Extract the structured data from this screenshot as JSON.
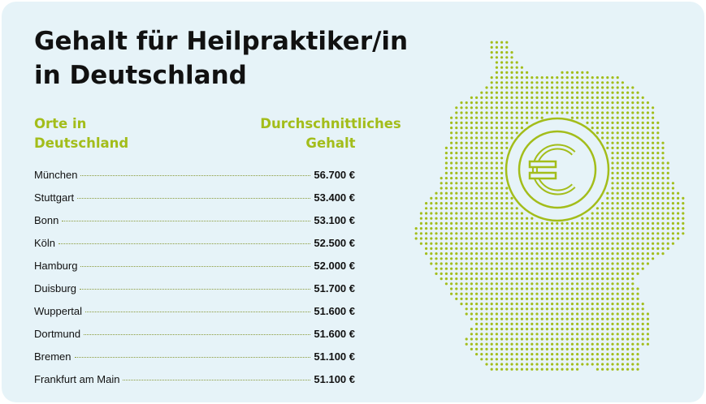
{
  "title_line1": "Gehalt für Heilpraktiker/in",
  "title_line2": "in Deutschland",
  "col_left_line1": "Orte in",
  "col_left_line2": "Deutschland",
  "col_right_line1": "Durchschnittliches",
  "col_right_line2": "Gehalt",
  "colors": {
    "accent": "#a3bd1a",
    "background": "#e6f3f8",
    "text": "#111111"
  },
  "icons": [
    "germany-map-dots",
    "euro-icon"
  ],
  "chart_data": {
    "type": "table",
    "columns": [
      "Orte in Deutschland",
      "Durchschnittliches Gehalt"
    ],
    "rows": [
      {
        "city": "München",
        "salary": "56.700 €",
        "value": 56700
      },
      {
        "city": "Stuttgart",
        "salary": "53.400 €",
        "value": 53400
      },
      {
        "city": "Bonn",
        "salary": "53.100 €",
        "value": 53100
      },
      {
        "city": "Köln",
        "salary": "52.500 €",
        "value": 52500
      },
      {
        "city": "Hamburg",
        "salary": "52.000 €",
        "value": 52000
      },
      {
        "city": "Duisburg",
        "salary": "51.700 €",
        "value": 51700
      },
      {
        "city": "Wuppertal",
        "salary": "51.600 €",
        "value": 51600
      },
      {
        "city": "Dortmund",
        "salary": "51.600 €",
        "value": 51600
      },
      {
        "city": "Bremen",
        "salary": "51.100 €",
        "value": 51100
      },
      {
        "city": "Frankfurt am Main",
        "salary": "51.100 €",
        "value": 51100
      }
    ]
  }
}
